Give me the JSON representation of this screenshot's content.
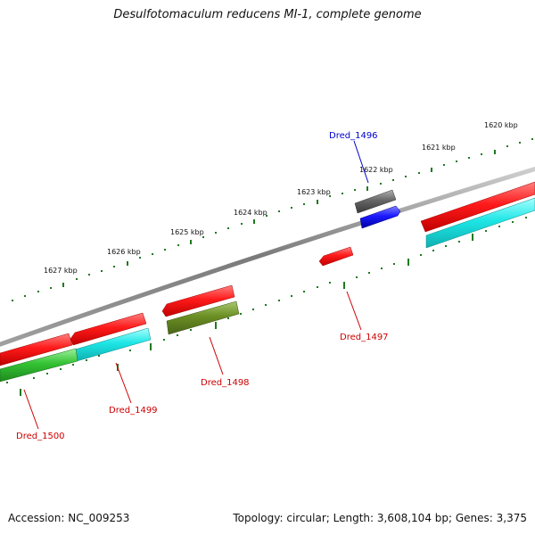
{
  "title": "Desulfotomaculum reducens MI-1, complete genome",
  "footer": {
    "accession": "Accession: NC_009253",
    "summary": "Topology: circular; Length: 3,608,104 bp; Genes: 3,375"
  },
  "colors": {
    "backbone": "#8a8a8a",
    "tick": "#1f7a1f",
    "forward_cds": "#ff1a1a",
    "reverse_cds_cyan": "#1ee6e6",
    "reverse_cds_green": "#33c233",
    "reverse_cds_olive": "#6b8e23",
    "gray_feature": "#666666",
    "blue_feature": "#1a1aff",
    "label_red": "#cc0000",
    "label_blue": "#0000cc"
  },
  "ruler": [
    {
      "label": "1620 kbp"
    },
    {
      "label": "1621 kbp"
    },
    {
      "label": "1622 kbp"
    },
    {
      "label": "1623 kbp"
    },
    {
      "label": "1624 kbp"
    },
    {
      "label": "1625 kbp"
    },
    {
      "label": "1626 kbp"
    },
    {
      "label": "1627 kbp"
    }
  ],
  "gene_labels": [
    {
      "name": "Dred_1496",
      "color": "blue"
    },
    {
      "name": "Dred_1497",
      "color": "red"
    },
    {
      "name": "Dred_1498",
      "color": "red"
    },
    {
      "name": "Dred_1499",
      "color": "red"
    },
    {
      "name": "Dred_1500",
      "color": "red"
    }
  ]
}
